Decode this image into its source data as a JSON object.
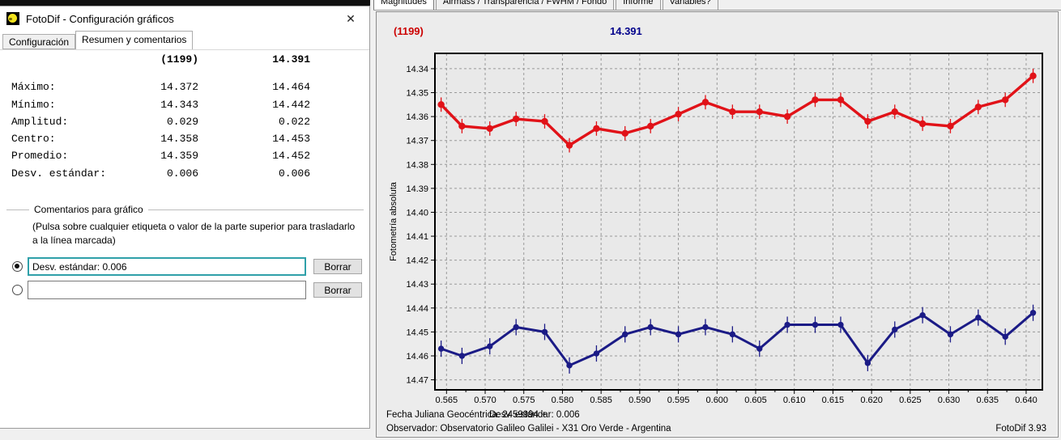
{
  "dialog": {
    "title": "FotoDif - Configuración gráficos",
    "close_glyph": "✕",
    "tabs": {
      "tab1": "Configuración",
      "tab2": "Resumen y comentarios"
    },
    "summary_table": {
      "columns": [
        "(1199)",
        "14.391"
      ],
      "rows": [
        {
          "label": "Máximo:",
          "col1": "14.372",
          "col2": "14.464"
        },
        {
          "label": "Mínimo:",
          "col1": "14.343",
          "col2": "14.442"
        },
        {
          "label": "Amplitud:",
          "col1": "0.029",
          "col2": "0.022"
        },
        {
          "label": "Centro:",
          "col1": "14.358",
          "col2": "14.453"
        },
        {
          "label": "Promedio:",
          "col1": "14.359",
          "col2": "14.452"
        },
        {
          "label": "Desv. estándar:",
          "col1": "0.006",
          "col2": "0.006"
        }
      ]
    },
    "comments_group": {
      "title": "Comentarios para gráfico",
      "hint_line1": "(Pulsa sobre cualquier etiqueta o valor de la parte superior para trasladarlo",
      "hint_line2": "a la línea marcada)",
      "clear_label": "Borrar",
      "comment1": {
        "value": "Desv. estándar: 0.006",
        "selected": true
      },
      "comment2": {
        "value": "",
        "selected": false
      }
    }
  },
  "chart_panel": {
    "tabs": [
      "Magnitudes",
      "Airmass / Transparencia / FWHM / Fondo",
      "Informe",
      "Variables?"
    ],
    "active_tab": "Magnitudes",
    "label_left": "(1199)",
    "label_center": "14.391",
    "footer": {
      "line1_left": "Fecha Juliana Geocéntrica: 2459994 +",
      "line1_right": "Desv. estándar: 0.006",
      "line2": "Observador: Observatorio Galileo Galilei - X31 Oro Verde - Argentina",
      "version": "FotoDif 3.93"
    }
  },
  "colors": {
    "series_red": "#e11218",
    "series_blue": "#1b1b86",
    "label_red": "#cc0000",
    "label_blue": "#00008b",
    "focus_border": "#2fa0a9"
  },
  "chart_data": {
    "type": "line",
    "title": "",
    "xlabel": "",
    "ylabel": "Fotometría absoluta",
    "y_axis_inverted": true,
    "grid": true,
    "legend": "none",
    "xlim": [
      0.5635,
      0.6421
    ],
    "ylim": [
      14.3336,
      14.4742
    ],
    "xticks": [
      "0.565",
      "0.570",
      "0.575",
      "0.580",
      "0.585",
      "0.590",
      "0.595",
      "0.600",
      "0.605",
      "0.610",
      "0.615",
      "0.620",
      "0.625",
      "0.630",
      "0.635",
      "0.640"
    ],
    "yticks": [
      "14.34",
      "14.35",
      "14.36",
      "14.37",
      "14.38",
      "14.39",
      "14.40",
      "14.41",
      "14.42",
      "14.43",
      "14.44",
      "14.45",
      "14.46",
      "14.47"
    ],
    "x": [
      0.5643,
      0.567,
      0.5706,
      0.574,
      0.5777,
      0.5809,
      0.5844,
      0.5881,
      0.5914,
      0.595,
      0.5985,
      0.602,
      0.6055,
      0.6091,
      0.6127,
      0.616,
      0.6195,
      0.623,
      0.6266,
      0.6302,
      0.6338,
      0.6373,
      0.6409
    ],
    "series": [
      {
        "name": "(1199)",
        "color": "#e11218",
        "error": 0.003,
        "values": [
          14.355,
          14.364,
          14.365,
          14.361,
          14.362,
          14.372,
          14.365,
          14.367,
          14.364,
          14.359,
          14.354,
          14.358,
          14.358,
          14.36,
          14.353,
          14.353,
          14.362,
          14.358,
          14.363,
          14.364,
          14.356,
          14.353,
          14.343
        ]
      },
      {
        "name": "14.391",
        "color": "#1b1b86",
        "error": 0.0034,
        "values": [
          14.457,
          14.46,
          14.456,
          14.448,
          14.45,
          14.464,
          14.459,
          14.451,
          14.448,
          14.451,
          14.448,
          14.451,
          14.457,
          14.447,
          14.447,
          14.447,
          14.463,
          14.449,
          14.443,
          14.451,
          14.444,
          14.452,
          14.442
        ]
      }
    ]
  }
}
